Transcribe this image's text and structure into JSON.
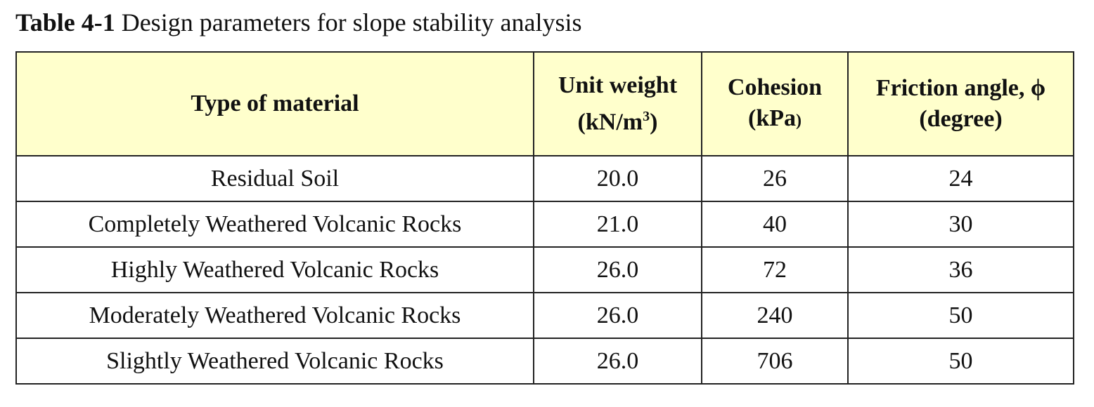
{
  "caption": {
    "label": "Table 4-1",
    "title": "Design parameters for slope stability analysis"
  },
  "table": {
    "header": {
      "material": "Type of material",
      "unit_weight_line1": "Unit weight",
      "unit_weight_line2": "(kN/m",
      "unit_weight_sup": "3",
      "unit_weight_close": ")",
      "cohesion_line1": "Cohesion",
      "cohesion_line2": "(kPa",
      "cohesion_close": ")",
      "friction_line1": "Friction angle, ϕ",
      "friction_line2": "(degree)"
    },
    "rows": [
      {
        "material": "Residual Soil",
        "unit_weight": "20.0",
        "cohesion": "26",
        "friction": "24"
      },
      {
        "material": "Completely Weathered Volcanic Rocks",
        "unit_weight": "21.0",
        "cohesion": "40",
        "friction": "30"
      },
      {
        "material": "Highly Weathered Volcanic Rocks",
        "unit_weight": "26.0",
        "cohesion": "72",
        "friction": "36"
      },
      {
        "material": "Moderately Weathered Volcanic Rocks",
        "unit_weight": "26.0",
        "cohesion": "240",
        "friction": "50"
      },
      {
        "material": "Slightly Weathered Volcanic Rocks",
        "unit_weight": "26.0",
        "cohesion": "706",
        "friction": "50"
      }
    ]
  },
  "colors": {
    "header_background": "#ffffcc",
    "border": "#222222"
  }
}
